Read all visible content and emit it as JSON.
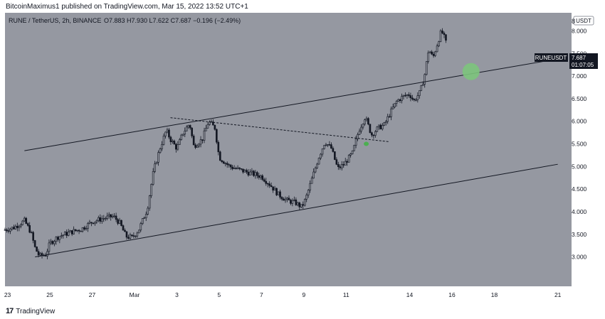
{
  "header": {
    "published": "BitcoinMaximus1 published on TradingView.com, Mar 15, 2022 13:52 UTC+1"
  },
  "footer": {
    "logo": "17",
    "brand": "TradingView"
  },
  "colors": {
    "plot_bg": "#9598a1",
    "axis_bg": "#ffffff",
    "candle": "#131722",
    "trendline": "#131722",
    "marker_green_dot": "#4caf50",
    "marker_green_circle": "#7cc47c",
    "price_tag_bg": "#131722",
    "price_tag_text": "#ffffff"
  },
  "chart_data": {
    "type": "candlestick",
    "symbol_line": "RUNE / TetherUS, 2h, BINANCE",
    "ohlc_line": "O7.883 H7.930 L7.622 C7.687 −0.196 (−2.49%)",
    "ohlc_colored": "O7.883 H7.930 L7.622 C7.687 −0.196 (−2.49%)",
    "currency_badge": "USDT",
    "ylim": [
      2.35,
      8.4
    ],
    "y_ticks": [
      8.0,
      7.5,
      7.0,
      6.5,
      6.0,
      5.5,
      5.0,
      4.5,
      4.0,
      3.5,
      3.0
    ],
    "y_tick_labels": [
      "8.000",
      "7.500",
      "7.000",
      "6.500",
      "6.000",
      "5.500",
      "5.000",
      "4.500",
      "4.000",
      "3.500",
      "3.000"
    ],
    "y_top_label": "8",
    "x_range_days": [
      -5.12,
      21.65
    ],
    "x_ticks": [
      {
        "label": "23",
        "day": -5
      },
      {
        "label": "25",
        "day": -3
      },
      {
        "label": "27",
        "day": -1
      },
      {
        "label": "Mar",
        "day": 1
      },
      {
        "label": "3",
        "day": 3
      },
      {
        "label": "5",
        "day": 5
      },
      {
        "label": "7",
        "day": 7
      },
      {
        "label": "9",
        "day": 9
      },
      {
        "label": "11",
        "day": 11
      },
      {
        "label": "14",
        "day": 14
      },
      {
        "label": "16",
        "day": 16
      },
      {
        "label": "18",
        "day": 18
      },
      {
        "label": "21",
        "day": 21
      }
    ],
    "price_path": [
      [
        -5.12,
        3.6
      ],
      [
        -4.7,
        3.65
      ],
      [
        -4.2,
        3.8
      ],
      [
        -3.9,
        3.55
      ],
      [
        -3.7,
        3.2
      ],
      [
        -3.5,
        3.02
      ],
      [
        -3.2,
        3.05
      ],
      [
        -3.0,
        3.3
      ],
      [
        -2.6,
        3.45
      ],
      [
        -2.0,
        3.55
      ],
      [
        -1.5,
        3.62
      ],
      [
        -1.0,
        3.78
      ],
      [
        -0.5,
        3.85
      ],
      [
        0.0,
        3.9
      ],
      [
        0.3,
        3.75
      ],
      [
        0.6,
        3.45
      ],
      [
        0.9,
        3.43
      ],
      [
        1.2,
        3.6
      ],
      [
        1.6,
        4.05
      ],
      [
        1.9,
        4.9
      ],
      [
        2.2,
        5.4
      ],
      [
        2.5,
        5.8
      ],
      [
        2.7,
        5.6
      ],
      [
        3.0,
        5.4
      ],
      [
        3.3,
        5.75
      ],
      [
        3.6,
        5.95
      ],
      [
        3.8,
        5.45
      ],
      [
        4.2,
        5.6
      ],
      [
        4.5,
        6.0
      ],
      [
        4.8,
        5.85
      ],
      [
        5.0,
        5.2
      ],
      [
        5.5,
        5.0
      ],
      [
        6.0,
        4.92
      ],
      [
        6.5,
        4.85
      ],
      [
        7.0,
        4.78
      ],
      [
        7.4,
        4.6
      ],
      [
        7.8,
        4.38
      ],
      [
        8.2,
        4.25
      ],
      [
        8.6,
        4.2
      ],
      [
        8.9,
        4.1
      ],
      [
        9.1,
        4.3
      ],
      [
        9.4,
        4.75
      ],
      [
        9.7,
        5.2
      ],
      [
        10.0,
        5.55
      ],
      [
        10.3,
        5.4
      ],
      [
        10.6,
        4.95
      ],
      [
        10.9,
        5.05
      ],
      [
        11.3,
        5.3
      ],
      [
        11.6,
        5.8
      ],
      [
        11.9,
        6.1
      ],
      [
        12.2,
        5.7
      ],
      [
        12.5,
        5.85
      ],
      [
        12.8,
        5.92
      ],
      [
        13.1,
        6.2
      ],
      [
        13.4,
        6.45
      ],
      [
        13.7,
        6.55
      ],
      [
        14.0,
        6.6
      ],
      [
        14.2,
        6.45
      ],
      [
        14.5,
        6.65
      ],
      [
        14.7,
        7.0
      ],
      [
        14.9,
        7.6
      ],
      [
        15.1,
        7.4
      ],
      [
        15.3,
        7.7
      ],
      [
        15.5,
        8.0
      ],
      [
        15.6,
        7.9
      ],
      [
        15.75,
        7.69
      ]
    ],
    "last_price": 7.687,
    "last_price_label": "7.687",
    "countdown": "01:07:05",
    "symbol_tag": "RUNEUSDT",
    "trendlines": [
      {
        "name": "channel-upper",
        "style": "solid",
        "from": [
          -4.2,
          5.35
        ],
        "to": [
          21.0,
          7.38
        ]
      },
      {
        "name": "channel-lower",
        "style": "solid",
        "from": [
          -3.7,
          3.0
        ],
        "to": [
          21.0,
          5.05
        ]
      },
      {
        "name": "descending-resistance",
        "style": "dashed",
        "from": [
          2.7,
          6.08
        ],
        "to": [
          13.0,
          5.55
        ]
      }
    ],
    "markers": [
      {
        "name": "breakout-marker",
        "shape": "dot",
        "day": 11.95,
        "price": 5.5
      },
      {
        "name": "target-circle",
        "shape": "circle",
        "day": 16.9,
        "price": 7.1
      }
    ]
  }
}
